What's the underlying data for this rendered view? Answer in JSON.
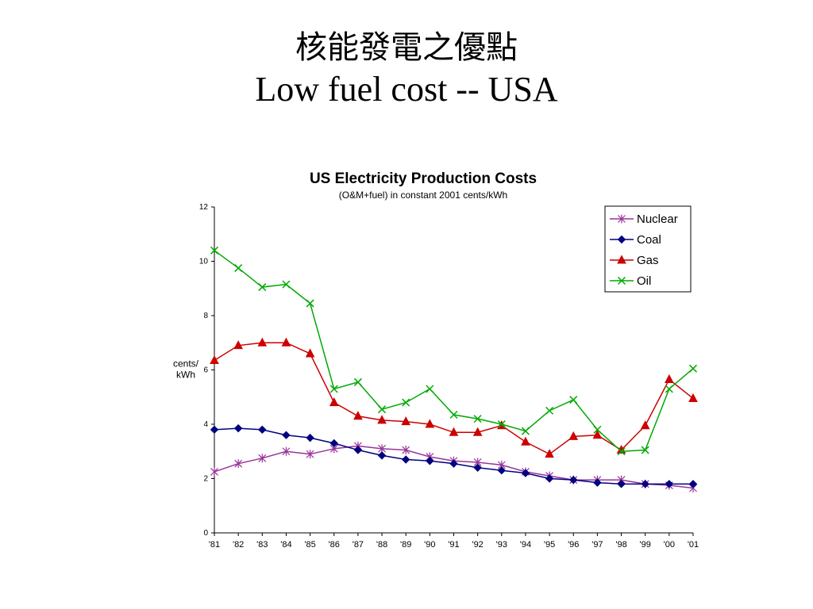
{
  "slide": {
    "title_zh": "核能發電之優點",
    "title_en": "Low fuel cost -- USA"
  },
  "chart_data": {
    "type": "line",
    "title": "US Electricity Production Costs",
    "subtitle": "(O&M+fuel) in constant 2001 cents/kWh",
    "ylabel": "cents/ kWh",
    "xlabel": "",
    "ylim": [
      0,
      12
    ],
    "yticks": [
      0,
      2,
      4,
      6,
      8,
      10,
      12
    ],
    "categories": [
      "'81",
      "'82",
      "'83",
      "'84",
      "'85",
      "'86",
      "'87",
      "'88",
      "'89",
      "'90",
      "'91",
      "'92",
      "'93",
      "'94",
      "'95",
      "'96",
      "'97",
      "'98",
      "'99",
      "'00",
      "'01"
    ],
    "grid": false,
    "legend_position": "top-right",
    "series": [
      {
        "name": "Nuclear",
        "marker": "asterisk",
        "color": "#993399",
        "values": [
          2.25,
          2.55,
          2.75,
          3.0,
          2.9,
          3.1,
          3.2,
          3.1,
          3.05,
          2.8,
          2.65,
          2.6,
          2.5,
          2.25,
          2.1,
          1.95,
          1.95,
          1.95,
          1.8,
          1.75,
          1.65
        ]
      },
      {
        "name": "Coal",
        "marker": "diamond",
        "color": "#000080",
        "values": [
          3.8,
          3.85,
          3.8,
          3.6,
          3.5,
          3.3,
          3.05,
          2.85,
          2.7,
          2.65,
          2.55,
          2.4,
          2.3,
          2.2,
          2.0,
          1.95,
          1.85,
          1.8,
          1.8,
          1.8,
          1.8
        ]
      },
      {
        "name": "Gas",
        "marker": "triangle",
        "color": "#cc0000",
        "values": [
          6.35,
          6.9,
          7.0,
          7.0,
          6.6,
          4.8,
          4.3,
          4.15,
          4.1,
          4.0,
          3.7,
          3.7,
          3.95,
          3.35,
          2.9,
          3.55,
          3.6,
          3.05,
          3.95,
          5.65,
          4.95
        ]
      },
      {
        "name": "Oil",
        "marker": "x",
        "color": "#00aa00",
        "values": [
          10.4,
          9.75,
          9.05,
          9.15,
          8.45,
          5.3,
          5.55,
          4.55,
          4.8,
          5.3,
          4.35,
          4.2,
          4.0,
          3.75,
          4.5,
          4.9,
          3.8,
          3.0,
          3.05,
          5.3,
          6.05
        ]
      }
    ]
  }
}
